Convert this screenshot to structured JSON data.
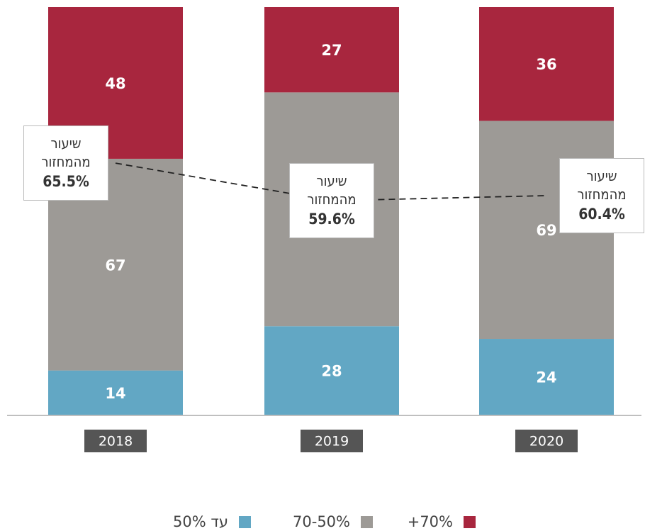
{
  "chart_data": {
    "type": "stacked_bar",
    "categories": [
      "2018",
      "2019",
      "2020"
    ],
    "ylim": [
      0,
      129
    ],
    "y2lim": [
      26,
      90
    ],
    "series": [
      {
        "name": "עד 50%",
        "color": "#62a7c4",
        "values": [
          14,
          28,
          24
        ]
      },
      {
        "name": "70-50%",
        "color": "#9d9a96",
        "values": [
          67,
          74,
          69
        ]
      },
      {
        "name": "+70%",
        "color": "#a8263e",
        "values": [
          48,
          27,
          36
        ]
      },
      {
        "name": "שיעור מהמחזור",
        "type": "line",
        "axis": "y2",
        "color": "#222222",
        "values": [
          65.5,
          59.6,
          60.4
        ],
        "value_labels": [
          "65.5%",
          "59.6%",
          "60.4%"
        ]
      }
    ]
  }
}
